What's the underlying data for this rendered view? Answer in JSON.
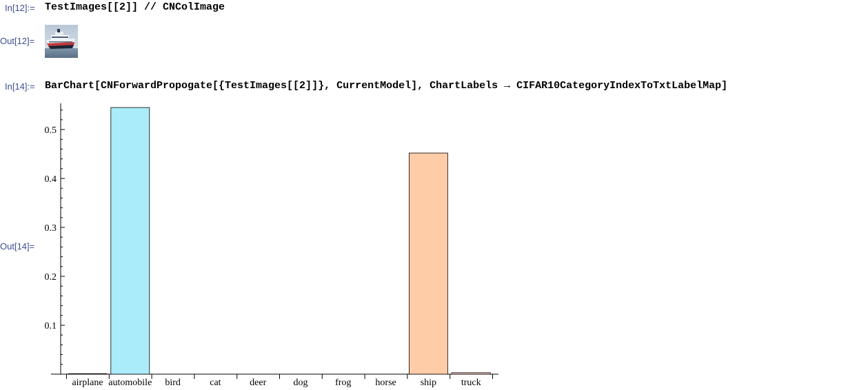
{
  "cells": {
    "in12": {
      "label": "In[12]:=",
      "code": "TestImages[[2]] // CNColImage"
    },
    "out12": {
      "label": "Out[12]="
    },
    "in14": {
      "label": "In[14]:=",
      "code": "BarChart[CNForwardPropogate[{TestImages[[2]]}, CurrentModel], ChartLabels → CIFAR10CategoryIndexToTxtLabelMap]"
    },
    "out14": {
      "label": "Out[14]="
    }
  },
  "chart_data": {
    "type": "bar",
    "categories": [
      "airplane",
      "automobile",
      "bird",
      "cat",
      "deer",
      "dog",
      "frog",
      "horse",
      "ship",
      "truck"
    ],
    "values": [
      0.001,
      0.545,
      0.0,
      0.0,
      0.0,
      0.0,
      0.0,
      0.0,
      0.452,
      0.003
    ],
    "colors": [
      "#f2dcc7",
      "#aaecf9",
      "#fbe4b7",
      "#c7d5f2",
      "#f6d1e0",
      "#dbf0c8",
      "#e6d3f5",
      "#f8e2c6",
      "#ffcca8",
      "#f9c7c2"
    ],
    "yticks": [
      0.1,
      0.2,
      0.3,
      0.4,
      0.5
    ],
    "ylim": [
      0,
      0.55
    ],
    "title": "",
    "xlabel": "",
    "ylabel": "",
    "grid": false
  }
}
